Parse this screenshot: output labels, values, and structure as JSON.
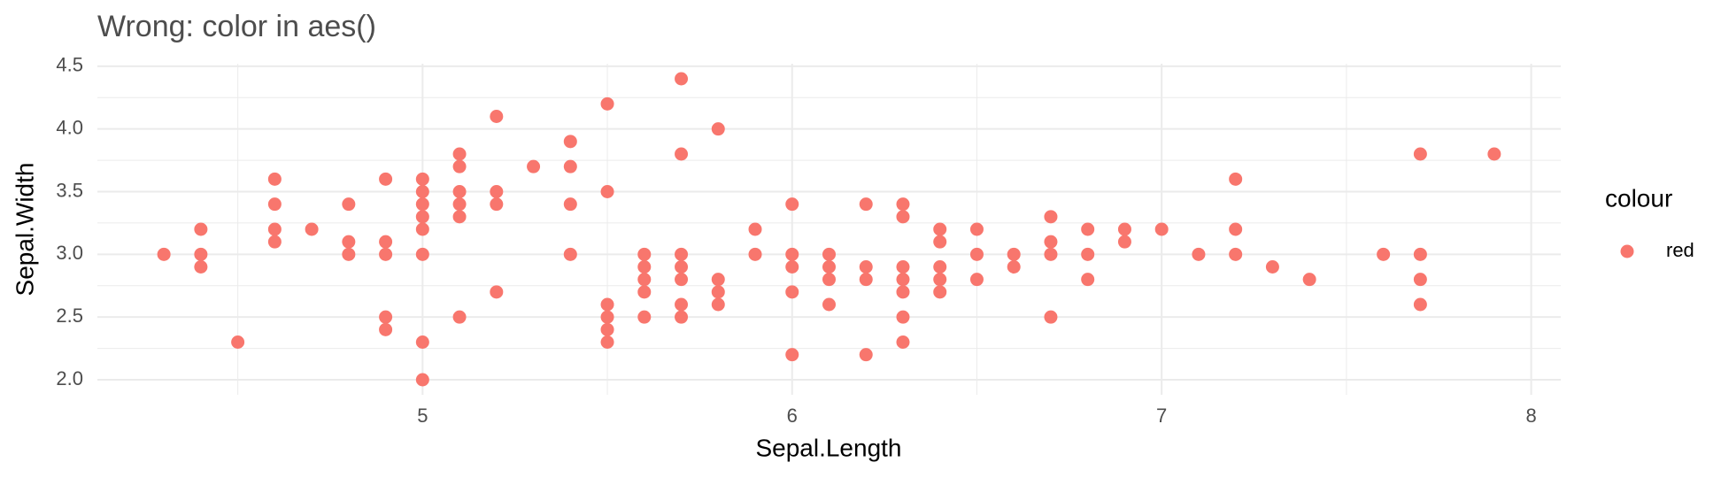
{
  "chart_data": {
    "type": "scatter",
    "title": "Wrong: color in aes()",
    "x_label": "Sepal.Length",
    "y_label": "Sepal.Width",
    "xlim": [
      4.12,
      8.08
    ],
    "ylim": [
      1.88,
      4.52
    ],
    "xticks": [
      5,
      6,
      7,
      8
    ],
    "yticks": [
      {
        "value": 2,
        "label": "2.0"
      },
      2.5,
      {
        "value": 3,
        "label": "3.0"
      },
      3.5,
      {
        "value": 4,
        "label": "4.0"
      },
      4.5
    ],
    "grid": true,
    "minor_grid": true,
    "legend_title": "colour",
    "legend_position": "right",
    "series": [
      {
        "name": "red",
        "color": "#F8766D",
        "x": [
          4.3,
          4.4,
          4.4,
          4.4,
          4.5,
          4.6,
          4.6,
          4.6,
          4.6,
          4.7,
          4.8,
          4.8,
          4.8,
          4.9,
          4.9,
          4.9,
          4.9,
          4.9,
          5.0,
          5.0,
          5.0,
          5.0,
          5.0,
          5.0,
          5.0,
          5.0,
          5.1,
          5.1,
          5.1,
          5.1,
          5.1,
          5.1,
          5.2,
          5.2,
          5.2,
          5.2,
          5.3,
          5.4,
          5.4,
          5.4,
          5.4,
          5.5,
          5.5,
          5.5,
          5.5,
          5.5,
          5.5,
          5.6,
          5.6,
          5.6,
          5.6,
          5.6,
          5.7,
          5.7,
          5.7,
          5.7,
          5.7,
          5.7,
          5.7,
          5.8,
          5.8,
          5.8,
          5.8,
          5.9,
          5.9,
          6.0,
          6.0,
          6.0,
          6.0,
          6.0,
          6.1,
          6.1,
          6.1,
          6.1,
          6.2,
          6.2,
          6.2,
          6.2,
          6.3,
          6.3,
          6.3,
          6.3,
          6.3,
          6.3,
          6.3,
          6.4,
          6.4,
          6.4,
          6.4,
          6.4,
          6.5,
          6.5,
          6.5,
          6.6,
          6.6,
          6.7,
          6.7,
          6.7,
          6.7,
          6.8,
          6.8,
          6.8,
          6.9,
          6.9,
          7.0,
          7.1,
          7.2,
          7.2,
          7.2,
          7.3,
          7.4,
          7.6,
          7.7,
          7.7,
          7.7,
          7.7,
          7.9
        ],
        "values": [
          3.0,
          3.2,
          3.0,
          2.9,
          2.3,
          3.6,
          3.4,
          3.2,
          3.1,
          3.2,
          3.4,
          3.1,
          3.0,
          3.6,
          3.1,
          3.0,
          2.5,
          2.4,
          3.6,
          3.5,
          3.4,
          3.3,
          3.2,
          3.0,
          2.3,
          2.0,
          3.8,
          3.7,
          3.5,
          3.4,
          3.3,
          2.5,
          4.1,
          3.5,
          3.4,
          2.7,
          3.7,
          3.9,
          3.7,
          3.4,
          3.0,
          4.2,
          3.5,
          2.6,
          2.5,
          2.4,
          2.3,
          3.0,
          2.9,
          2.8,
          2.7,
          2.5,
          4.4,
          3.8,
          3.0,
          2.9,
          2.8,
          2.6,
          2.5,
          4.0,
          2.8,
          2.7,
          2.6,
          3.2,
          3.0,
          3.4,
          3.0,
          2.9,
          2.7,
          2.2,
          3.0,
          2.9,
          2.8,
          2.6,
          3.4,
          2.9,
          2.8,
          2.2,
          3.4,
          3.3,
          2.9,
          2.8,
          2.7,
          2.5,
          2.3,
          3.2,
          3.1,
          2.9,
          2.8,
          2.7,
          3.2,
          3.0,
          2.8,
          3.0,
          2.9,
          3.3,
          3.1,
          3.0,
          2.5,
          3.2,
          3.0,
          2.8,
          3.2,
          3.1,
          3.2,
          3.0,
          3.6,
          3.2,
          3.0,
          2.9,
          2.8,
          3.0,
          3.8,
          3.0,
          2.8,
          2.6,
          3.8
        ]
      }
    ]
  }
}
